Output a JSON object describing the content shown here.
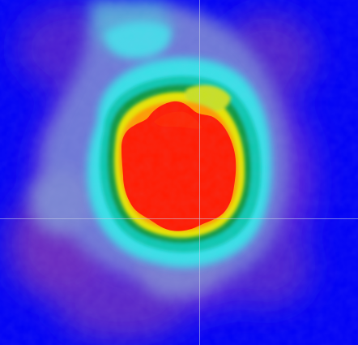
{
  "image": {
    "kind": "false-color intensity heatmap",
    "palette": [
      "#0000f4",
      "#7a2fc0",
      "#6a8cd0",
      "#30e8e8",
      "#00a050",
      "#e0e000",
      "#ff2000"
    ],
    "background_color": "#0000f4",
    "hotspot_color": "#ff1a00",
    "crosshair": {
      "visible": true,
      "color": "#c8d0e8",
      "orientation": [
        "vertical",
        "horizontal"
      ]
    }
  }
}
